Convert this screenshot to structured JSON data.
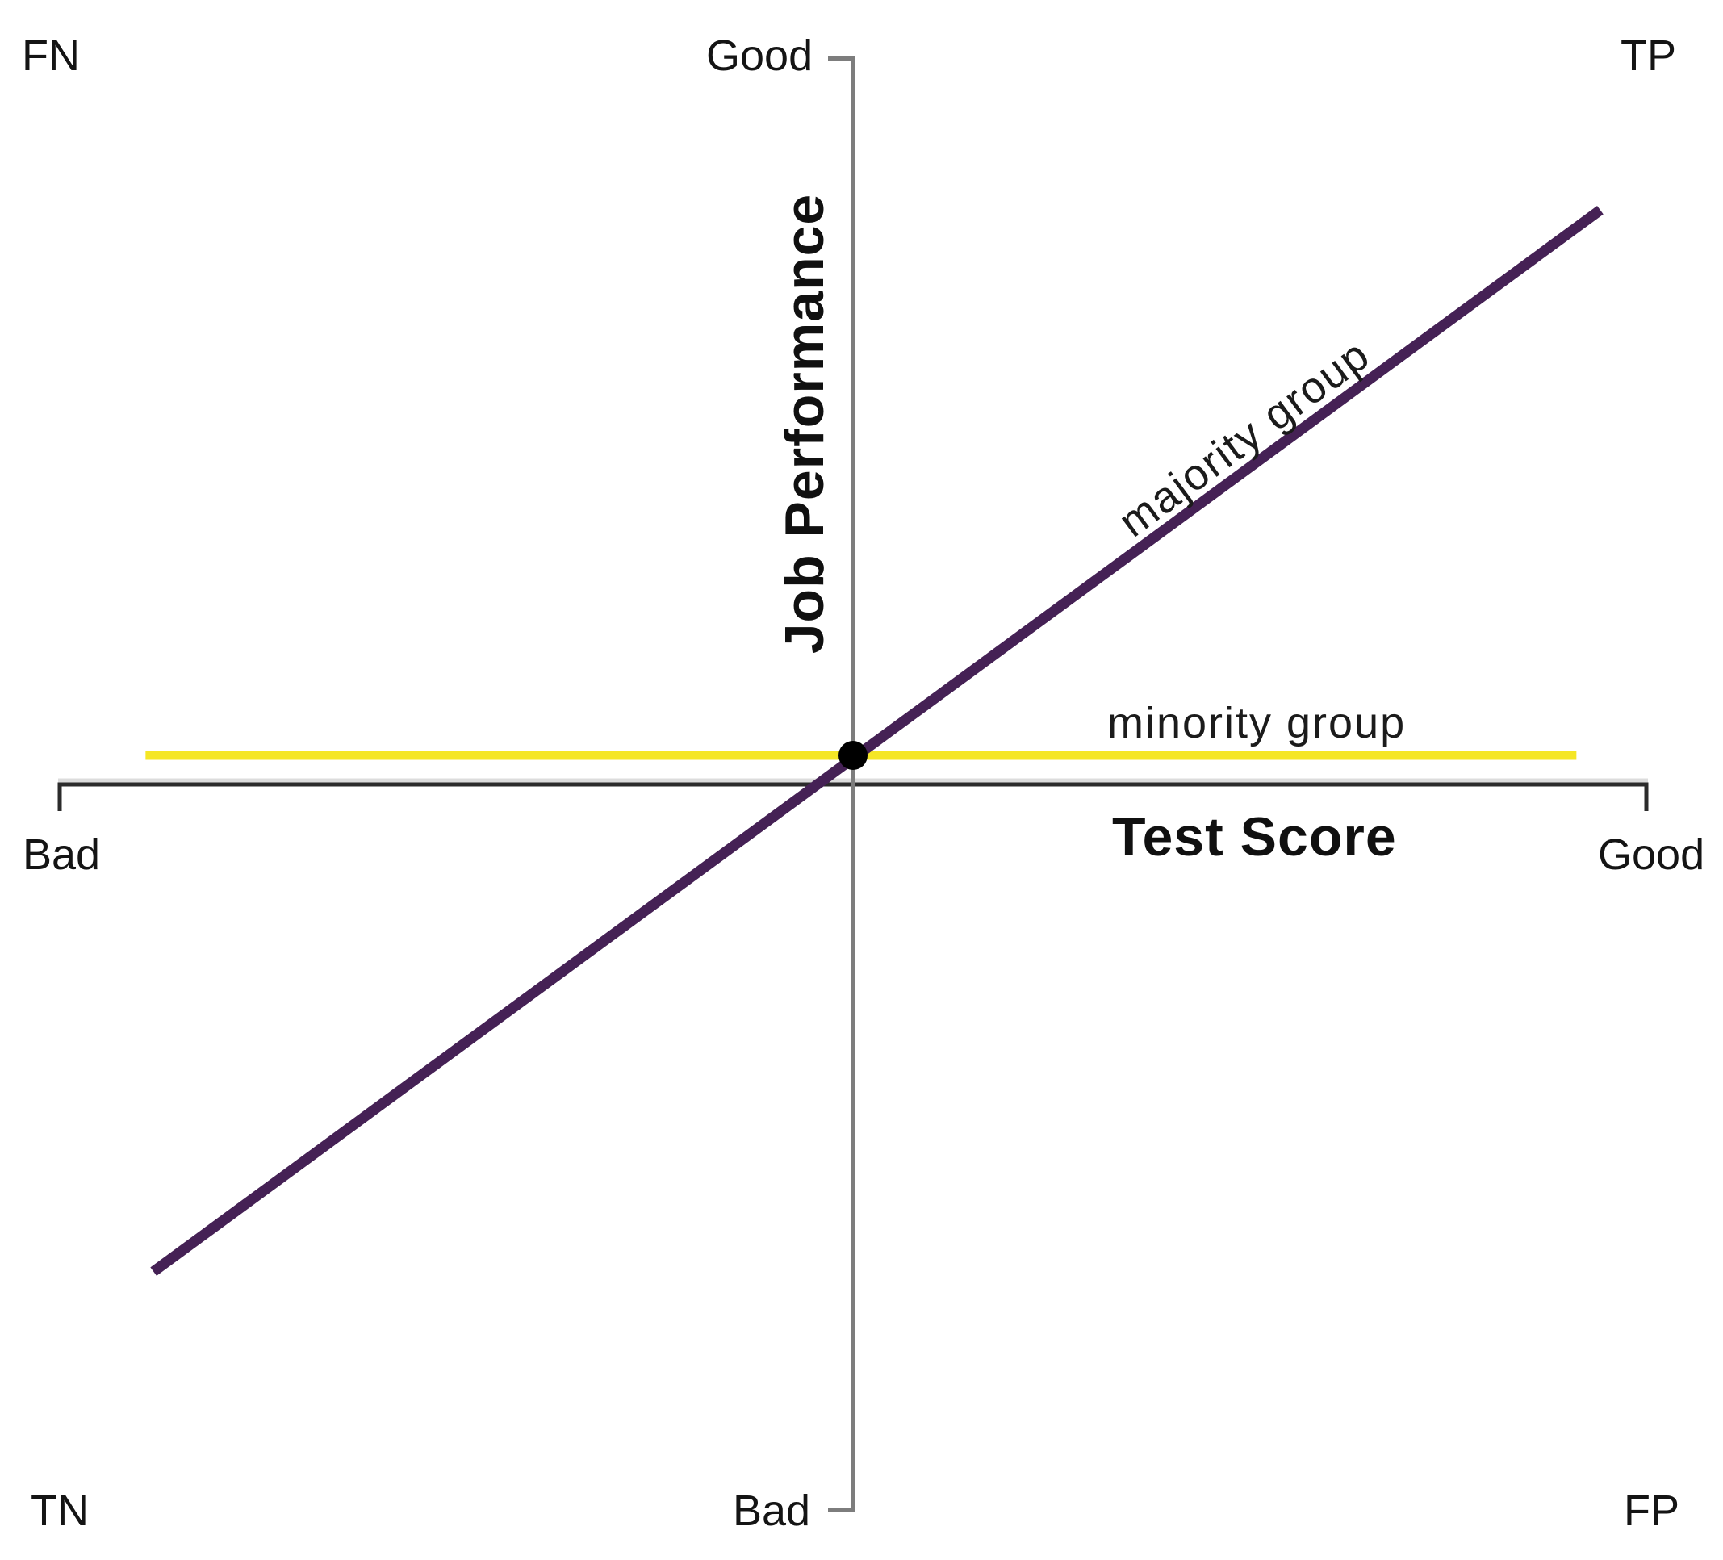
{
  "labels": {
    "corner_fn": "FN",
    "corner_tp": "TP",
    "corner_tn": "TN",
    "corner_fp": "FP",
    "y_top": "Good",
    "y_bottom": "Bad",
    "x_left": "Bad",
    "x_right": "Good",
    "y_title": "Job Performance",
    "x_title": "Test Score",
    "majority": "majority group",
    "minority": "minority group"
  },
  "colors": {
    "background": "#ffffff",
    "text": "#141414",
    "x_axis": "#2b2b2b",
    "x_axis_highlight": "#dcdcdc",
    "y_axis": "#7d7d7d",
    "majority_line": "#452155",
    "minority_line": "#f5e625",
    "dot": "#000000"
  },
  "chart_data": {
    "type": "line",
    "title": "",
    "xlabel": "Test Score",
    "ylabel": "Job Performance",
    "x_range_labels": [
      "Bad",
      "Good"
    ],
    "y_range_labels": [
      "Bad",
      "Good"
    ],
    "xlim": [
      -1,
      1
    ],
    "ylim": [
      -1,
      1
    ],
    "grid": false,
    "legend_position": "inline-labels",
    "series": [
      {
        "name": "majority group",
        "color": "#452155",
        "width": 13,
        "x": [
          -0.88,
          0.94
        ],
        "y": [
          -0.67,
          0.79
        ]
      },
      {
        "name": "minority group",
        "color": "#f5e625",
        "width": 11,
        "x": [
          -0.89,
          0.91
        ],
        "y": [
          0.04,
          0.04
        ]
      }
    ],
    "points": [
      {
        "label": "intersection",
        "x": 0.0,
        "y": 0.04,
        "color": "#000000",
        "radius": 18
      }
    ],
    "quadrant_labels": [
      {
        "label": "FN",
        "position": "top-left"
      },
      {
        "label": "TP",
        "position": "top-right"
      },
      {
        "label": "TN",
        "position": "bottom-left"
      },
      {
        "label": "FP",
        "position": "bottom-right"
      }
    ],
    "annotations": [
      {
        "text": "majority group",
        "rotation_deg": -36.5,
        "near": "upper segment of majority line"
      },
      {
        "text": "minority group",
        "rotation_deg": 0,
        "near": "above minority line, right of center"
      }
    ]
  }
}
